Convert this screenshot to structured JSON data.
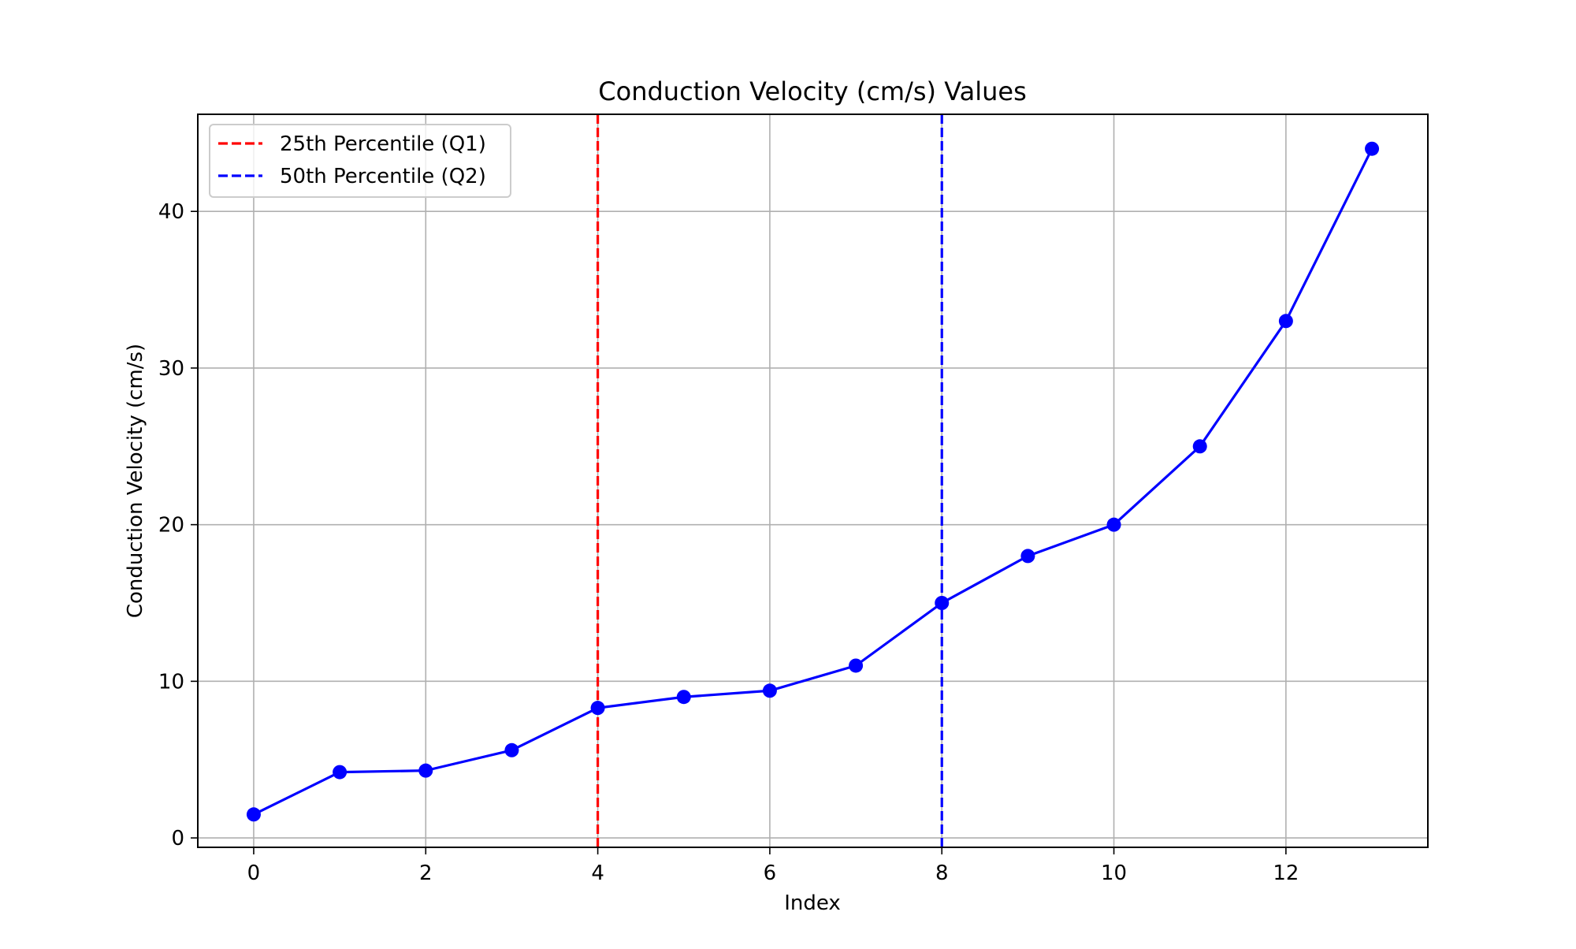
{
  "chart_data": {
    "type": "line",
    "title": "Conduction Velocity (cm/s) Values",
    "xlabel": "Index",
    "ylabel": "Conduction Velocity (cm/s)",
    "xlim": [
      -0.65,
      13.65
    ],
    "ylim": [
      -0.6,
      46.2
    ],
    "xticks": [
      0,
      2,
      4,
      6,
      8,
      10,
      12
    ],
    "yticks": [
      0,
      10,
      20,
      30,
      40
    ],
    "grid": true,
    "legend_position": "top-left",
    "series": [
      {
        "x": [
          0,
          1,
          2,
          3,
          4,
          5,
          6,
          7,
          8,
          9,
          10,
          11,
          12,
          13
        ],
        "values": [
          1.5,
          4.2,
          4.3,
          5.6,
          8.3,
          9.0,
          9.4,
          11.0,
          15.0,
          18.0,
          20.0,
          25.0,
          33.0,
          44.0
        ],
        "color": "#0000ff",
        "marker": "circle"
      }
    ],
    "reference_lines": [
      {
        "name": "25th Percentile (Q1)",
        "orientation": "vertical",
        "x": 4,
        "color": "#ff0000",
        "style": "dashed"
      },
      {
        "name": "50th Percentile (Q2)",
        "orientation": "vertical",
        "x": 8,
        "color": "#0000ff",
        "style": "dashed"
      }
    ],
    "colors": {
      "grid": "#b0b0b0",
      "axes": "#000000",
      "legend_border": "#cccccc"
    }
  }
}
